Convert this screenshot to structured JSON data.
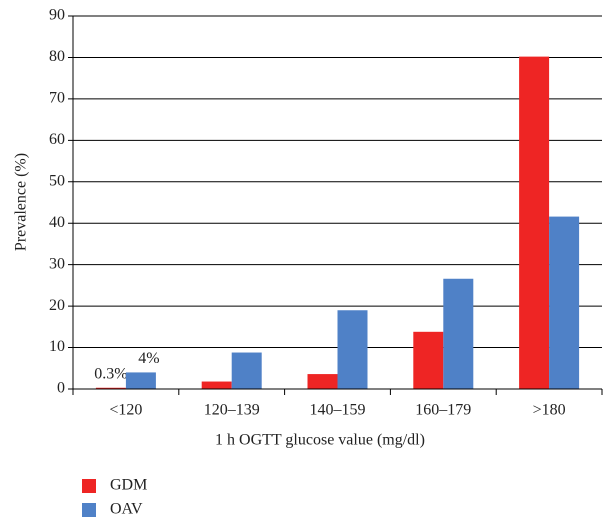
{
  "chart_data": {
    "type": "bar",
    "categories": [
      "<120",
      "120–139",
      "140–159",
      "160–179",
      ">180"
    ],
    "series": [
      {
        "name": "GDM",
        "color": "#ee2524",
        "values": [
          0.3,
          1.8,
          3.6,
          13.8,
          80.2
        ],
        "value_labels": [
          "0.3%",
          null,
          null,
          null,
          null
        ]
      },
      {
        "name": "OAV",
        "color": "#4f81c7",
        "values": [
          4,
          8.8,
          19,
          26.6,
          41.6
        ],
        "value_labels": [
          "4%",
          null,
          null,
          null,
          null
        ]
      }
    ],
    "x_label": "1 h OGTT glucose value (mg/dl)",
    "y_label": "Prevalence (%)",
    "ylim": [
      0,
      90
    ],
    "yticks": [
      0,
      10,
      20,
      30,
      40,
      50,
      60,
      70,
      80,
      90
    ],
    "grid": true
  }
}
